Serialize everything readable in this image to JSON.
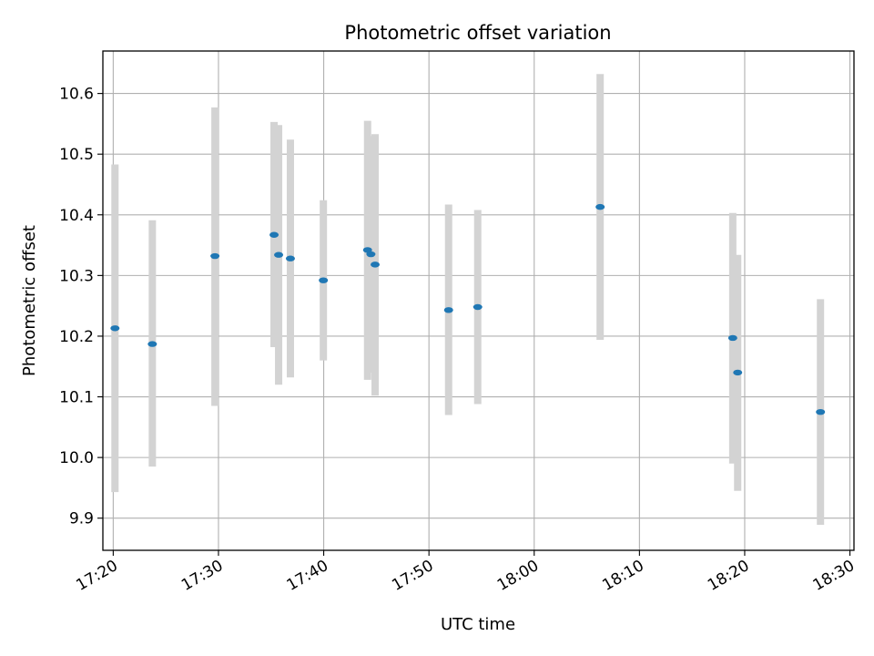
{
  "chart_data": {
    "type": "scatter",
    "title": "Photometric offset variation",
    "xlabel": "UTC time",
    "ylabel": "Photometric offset",
    "grid": true,
    "legend": "none",
    "xlim": [
      "17:19:01",
      "18:30:23"
    ],
    "ylim": [
      9.847,
      10.67
    ],
    "x_ticks": [
      "17:20",
      "17:30",
      "17:40",
      "17:50",
      "18:00",
      "18:10",
      "18:20",
      "18:30"
    ],
    "y_ticks": [
      9.9,
      10.0,
      10.1,
      10.2,
      10.3,
      10.4,
      10.5,
      10.6
    ],
    "y_tick_labels": [
      "9.9",
      "10.0",
      "10.1",
      "10.2",
      "10.3",
      "10.4",
      "10.5",
      "10.6"
    ],
    "colors": {
      "point": "#1f77b4",
      "errorbar": "#d3d3d3",
      "grid": "#b0b0b0"
    },
    "points": [
      {
        "x": "17:20:10",
        "y": 10.213,
        "y_low": 9.943,
        "y_high": 10.483
      },
      {
        "x": "17:23:43",
        "y": 10.187,
        "y_low": 9.985,
        "y_high": 10.391
      },
      {
        "x": "17:29:40",
        "y": 10.332,
        "y_low": 10.085,
        "y_high": 10.577
      },
      {
        "x": "17:35:17",
        "y": 10.367,
        "y_low": 10.182,
        "y_high": 10.553
      },
      {
        "x": "17:35:43",
        "y": 10.334,
        "y_low": 10.12,
        "y_high": 10.548
      },
      {
        "x": "17:36:50",
        "y": 10.328,
        "y_low": 10.132,
        "y_high": 10.524
      },
      {
        "x": "17:39:58",
        "y": 10.292,
        "y_low": 10.16,
        "y_high": 10.424
      },
      {
        "x": "17:44:10",
        "y": 10.342,
        "y_low": 10.128,
        "y_high": 10.555
      },
      {
        "x": "17:44:29",
        "y": 10.335,
        "y_low": 10.14,
        "y_high": 10.53
      },
      {
        "x": "17:44:53",
        "y": 10.318,
        "y_low": 10.102,
        "y_high": 10.533
      },
      {
        "x": "17:51:52",
        "y": 10.243,
        "y_low": 10.07,
        "y_high": 10.417
      },
      {
        "x": "17:54:38",
        "y": 10.248,
        "y_low": 10.088,
        "y_high": 10.408
      },
      {
        "x": "18:06:16",
        "y": 10.413,
        "y_low": 10.194,
        "y_high": 10.632
      },
      {
        "x": "18:18:52",
        "y": 10.197,
        "y_low": 9.99,
        "y_high": 10.403
      },
      {
        "x": "18:19:20",
        "y": 10.14,
        "y_low": 9.945,
        "y_high": 10.334
      },
      {
        "x": "18:27:12",
        "y": 10.075,
        "y_low": 9.889,
        "y_high": 10.261
      }
    ]
  }
}
